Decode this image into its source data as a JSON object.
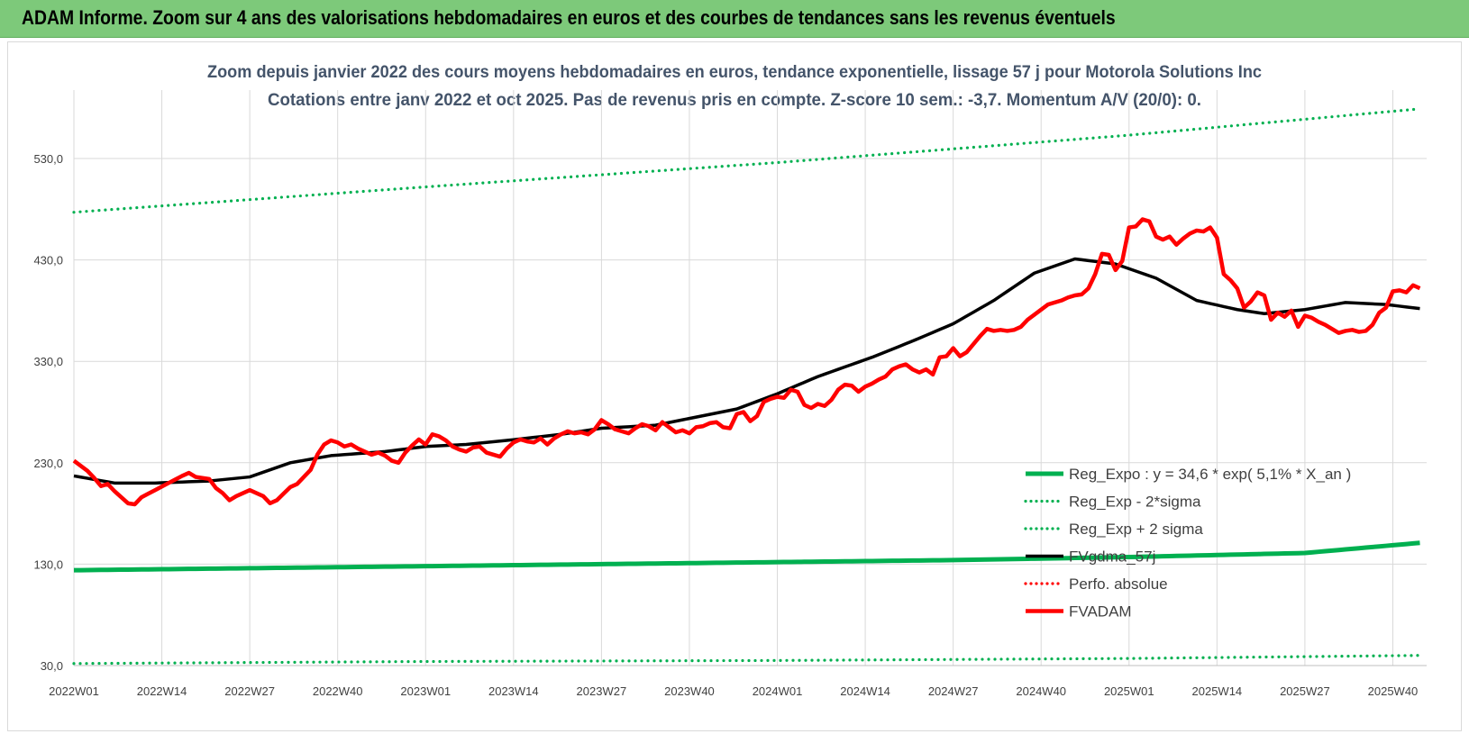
{
  "header": {
    "title": "ADAM Informe. Zoom sur 4 ans des valorisations hebdomadaires en euros et des courbes de tendances sans les revenus éventuels"
  },
  "chart_data": {
    "type": "line",
    "title_line1": "Zoom depuis janvier 2022 des cours moyens hebdomadaires en euros, tendance exponentielle, lissage 57 j pour Motorola Solutions Inc",
    "title_line2": "Cotations entre janv 2022 et oct 2025. Pas de revenus pris en compte. Z-score 10 sem.: -3,7.  Momentum A/V (20/0): 0.",
    "ylim": [
      30,
      580
    ],
    "y_ticks": [
      "30,0",
      "130,0",
      "230,0",
      "330,0",
      "430,0",
      "530,0"
    ],
    "x_tick_labels": [
      "2022W01",
      "2022W14",
      "2022W27",
      "2022W40",
      "2023W01",
      "2023W14",
      "2023W27",
      "2023W40",
      "2024W01",
      "2024W14",
      "2024W27",
      "2024W40",
      "2025W01",
      "2025W14",
      "2025W27",
      "2025W40"
    ],
    "week_count": 200,
    "grid": true,
    "legend_position": "bottom-right",
    "colors": {
      "green": "#00b050",
      "black": "#000000",
      "red": "#ff0000",
      "grid": "#d9d9d9"
    },
    "series": [
      {
        "name": "Reg_Expo : y = 34,6 * exp( 5,1% * X_an )",
        "style": "solid",
        "color": "#00b050",
        "points": [
          [
            0,
            124
          ],
          [
            26,
            126
          ],
          [
            52,
            128
          ],
          [
            78,
            130
          ],
          [
            104,
            132
          ],
          [
            130,
            134
          ],
          [
            156,
            137
          ],
          [
            182,
            141
          ],
          [
            199,
            151
          ]
        ]
      },
      {
        "name": "Reg_Exp - 2*sigma",
        "style": "dotted",
        "color": "#00b050",
        "points": [
          [
            0,
            32
          ],
          [
            52,
            34
          ],
          [
            104,
            35
          ],
          [
            156,
            37
          ],
          [
            199,
            40
          ]
        ]
      },
      {
        "name": "Reg_Exp + 2 sigma",
        "style": "dotted",
        "color": "#00b050",
        "points": [
          [
            0,
            477
          ],
          [
            52,
            502
          ],
          [
            104,
            526
          ],
          [
            156,
            553
          ],
          [
            199,
            579
          ]
        ]
      },
      {
        "name": "FVgdma_57j",
        "style": "solid",
        "color": "#000000",
        "points": [
          [
            0,
            217
          ],
          [
            6,
            210
          ],
          [
            12,
            210
          ],
          [
            20,
            212
          ],
          [
            26,
            216
          ],
          [
            32,
            230
          ],
          [
            38,
            237
          ],
          [
            46,
            241
          ],
          [
            52,
            246
          ],
          [
            58,
            248
          ],
          [
            64,
            252
          ],
          [
            72,
            258
          ],
          [
            78,
            264
          ],
          [
            86,
            267
          ],
          [
            92,
            275
          ],
          [
            98,
            283
          ],
          [
            104,
            298
          ],
          [
            110,
            315
          ],
          [
            118,
            334
          ],
          [
            124,
            350
          ],
          [
            130,
            367
          ],
          [
            136,
            390
          ],
          [
            142,
            417
          ],
          [
            148,
            431
          ],
          [
            154,
            426
          ],
          [
            160,
            412
          ],
          [
            166,
            390
          ],
          [
            172,
            381
          ],
          [
            176,
            377
          ],
          [
            182,
            381
          ],
          [
            188,
            388
          ],
          [
            194,
            386
          ],
          [
            199,
            382
          ]
        ]
      },
      {
        "name": "Perfo. absolue",
        "style": "dotted",
        "color": "#ff0000",
        "points": []
      },
      {
        "name": "FVADAM",
        "style": "solid",
        "color": "#ff0000",
        "points": [
          [
            0,
            232
          ],
          [
            2,
            222
          ],
          [
            3,
            215
          ],
          [
            4,
            207
          ],
          [
            5,
            209
          ],
          [
            6,
            202
          ],
          [
            7,
            196
          ],
          [
            8,
            190
          ],
          [
            9,
            189
          ],
          [
            10,
            196
          ],
          [
            12,
            203
          ],
          [
            14,
            210
          ],
          [
            16,
            217
          ],
          [
            17,
            220
          ],
          [
            18,
            216
          ],
          [
            20,
            214
          ],
          [
            21,
            205
          ],
          [
            22,
            200
          ],
          [
            23,
            193
          ],
          [
            24,
            197
          ],
          [
            26,
            203
          ],
          [
            27,
            200
          ],
          [
            28,
            197
          ],
          [
            29,
            190
          ],
          [
            30,
            193
          ],
          [
            32,
            206
          ],
          [
            33,
            209
          ],
          [
            34,
            216
          ],
          [
            35,
            223
          ],
          [
            36,
            238
          ],
          [
            37,
            248
          ],
          [
            38,
            252
          ],
          [
            39,
            250
          ],
          [
            40,
            246
          ],
          [
            41,
            248
          ],
          [
            42,
            244
          ],
          [
            44,
            238
          ],
          [
            45,
            240
          ],
          [
            46,
            237
          ],
          [
            47,
            232
          ],
          [
            48,
            230
          ],
          [
            49,
            240
          ],
          [
            50,
            247
          ],
          [
            51,
            253
          ],
          [
            52,
            248
          ],
          [
            53,
            258
          ],
          [
            54,
            256
          ],
          [
            55,
            252
          ],
          [
            56,
            246
          ],
          [
            57,
            243
          ],
          [
            58,
            241
          ],
          [
            59,
            245
          ],
          [
            60,
            246
          ],
          [
            61,
            240
          ],
          [
            62,
            238
          ],
          [
            63,
            236
          ],
          [
            64,
            244
          ],
          [
            65,
            250
          ],
          [
            66,
            253
          ],
          [
            67,
            251
          ],
          [
            68,
            250
          ],
          [
            69,
            254
          ],
          [
            70,
            248
          ],
          [
            71,
            254
          ],
          [
            72,
            258
          ],
          [
            73,
            261
          ],
          [
            74,
            259
          ],
          [
            75,
            260
          ],
          [
            76,
            258
          ],
          [
            77,
            263
          ],
          [
            78,
            272
          ],
          [
            79,
            268
          ],
          [
            80,
            263
          ],
          [
            81,
            261
          ],
          [
            82,
            259
          ],
          [
            83,
            264
          ],
          [
            84,
            268
          ],
          [
            85,
            266
          ],
          [
            86,
            262
          ],
          [
            87,
            270
          ],
          [
            88,
            265
          ],
          [
            89,
            260
          ],
          [
            90,
            262
          ],
          [
            91,
            259
          ],
          [
            92,
            265
          ],
          [
            93,
            266
          ],
          [
            94,
            269
          ],
          [
            95,
            270
          ],
          [
            96,
            265
          ],
          [
            97,
            264
          ],
          [
            98,
            278
          ],
          [
            99,
            280
          ],
          [
            100,
            271
          ],
          [
            101,
            276
          ],
          [
            102,
            290
          ],
          [
            103,
            293
          ],
          [
            104,
            295
          ],
          [
            105,
            294
          ],
          [
            106,
            302
          ],
          [
            107,
            300
          ],
          [
            108,
            287
          ],
          [
            109,
            284
          ],
          [
            110,
            288
          ],
          [
            111,
            286
          ],
          [
            112,
            292
          ],
          [
            113,
            302
          ],
          [
            114,
            307
          ],
          [
            115,
            306
          ],
          [
            116,
            300
          ],
          [
            117,
            305
          ],
          [
            118,
            308
          ],
          [
            119,
            312
          ],
          [
            120,
            315
          ],
          [
            121,
            322
          ],
          [
            122,
            325
          ],
          [
            123,
            327
          ],
          [
            124,
            322
          ],
          [
            125,
            319
          ],
          [
            126,
            322
          ],
          [
            127,
            317
          ],
          [
            128,
            334
          ],
          [
            129,
            335
          ],
          [
            130,
            343
          ],
          [
            131,
            335
          ],
          [
            132,
            339
          ],
          [
            133,
            347
          ],
          [
            134,
            355
          ],
          [
            135,
            362
          ],
          [
            136,
            360
          ],
          [
            137,
            361
          ],
          [
            138,
            360
          ],
          [
            139,
            361
          ],
          [
            140,
            364
          ],
          [
            141,
            371
          ],
          [
            142,
            376
          ],
          [
            143,
            381
          ],
          [
            144,
            386
          ],
          [
            145,
            388
          ],
          [
            146,
            390
          ],
          [
            147,
            393
          ],
          [
            148,
            395
          ],
          [
            149,
            396
          ],
          [
            150,
            402
          ],
          [
            151,
            416
          ],
          [
            152,
            436
          ],
          [
            153,
            435
          ],
          [
            154,
            420
          ],
          [
            155,
            429
          ],
          [
            156,
            462
          ],
          [
            157,
            463
          ],
          [
            158,
            470
          ],
          [
            159,
            468
          ],
          [
            160,
            453
          ],
          [
            161,
            450
          ],
          [
            162,
            453
          ],
          [
            163,
            445
          ],
          [
            164,
            451
          ],
          [
            165,
            456
          ],
          [
            166,
            459
          ],
          [
            167,
            458
          ],
          [
            168,
            462
          ],
          [
            169,
            452
          ],
          [
            170,
            416
          ],
          [
            171,
            410
          ],
          [
            172,
            402
          ],
          [
            173,
            383
          ],
          [
            174,
            389
          ],
          [
            175,
            398
          ],
          [
            176,
            395
          ],
          [
            177,
            371
          ],
          [
            178,
            378
          ],
          [
            179,
            374
          ],
          [
            180,
            380
          ],
          [
            181,
            364
          ],
          [
            182,
            375
          ],
          [
            183,
            373
          ],
          [
            184,
            369
          ],
          [
            185,
            366
          ],
          [
            186,
            362
          ],
          [
            187,
            358
          ],
          [
            188,
            360
          ],
          [
            189,
            361
          ],
          [
            190,
            359
          ],
          [
            191,
            360
          ],
          [
            192,
            366
          ],
          [
            193,
            378
          ],
          [
            194,
            383
          ],
          [
            195,
            399
          ],
          [
            196,
            400
          ],
          [
            197,
            398
          ],
          [
            198,
            405
          ],
          [
            199,
            402
          ]
        ]
      }
    ]
  }
}
